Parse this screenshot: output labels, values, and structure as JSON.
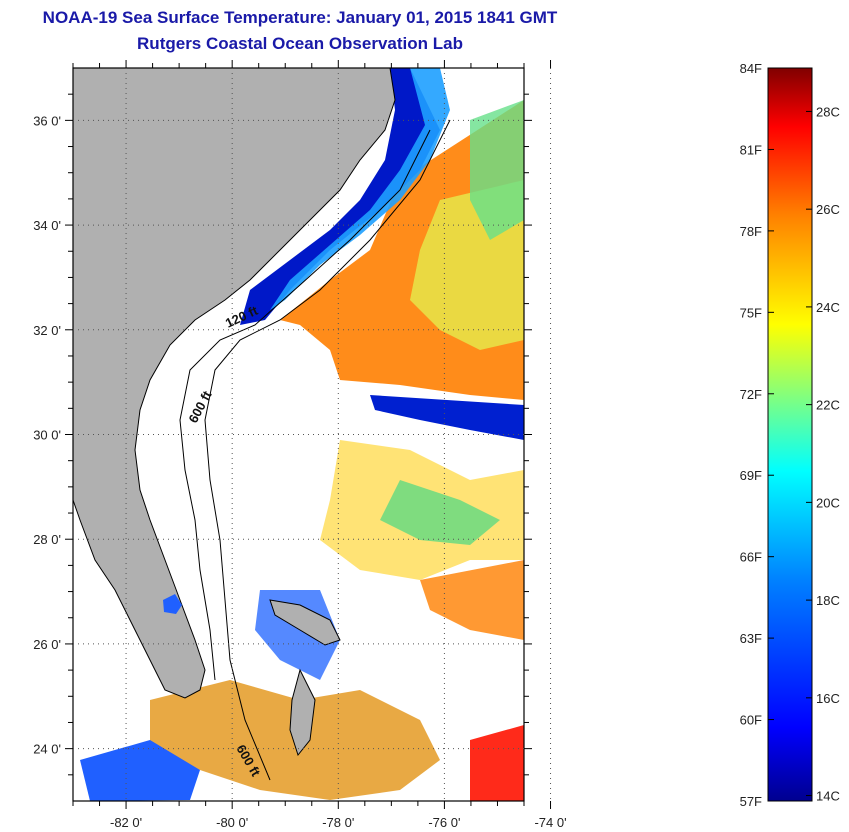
{
  "title": "NOAA-19 Sea Surface Temperature:  January 01, 2015 1841 GMT",
  "subtitle": "Rutgers Coastal Ocean Observation Lab",
  "map": {
    "lat_labels": [
      "36 0'",
      "34 0'",
      "32 0'",
      "30 0'",
      "28 0'",
      "26 0'",
      "24 0'"
    ],
    "lat_values": [
      36,
      34,
      32,
      30,
      28,
      26,
      24
    ],
    "lon_labels": [
      "-82 0'",
      "-80 0'",
      "-78 0'",
      "-76 0'",
      "-74 0'"
    ],
    "lon_values": [
      -82,
      -80,
      -78,
      -76,
      -74
    ],
    "lon_range": [
      -83,
      -74.5
    ],
    "lat_range": [
      23,
      37
    ],
    "contour_labels": [
      "120 ft",
      "600 ft",
      "600 ft"
    ],
    "land_color": "#b0b0b0",
    "cloud_color": "#ffffff"
  },
  "colorbar": {
    "fahrenheit_labels": [
      "84F",
      "81F",
      "78F",
      "75F",
      "72F",
      "69F",
      "66F",
      "63F",
      "60F",
      "57F"
    ],
    "celsius_labels": [
      "28C",
      "26C",
      "24C",
      "22C",
      "20C",
      "18C",
      "16C",
      "14C"
    ],
    "f_min": 57,
    "f_max": 84,
    "colors": [
      "#00008f",
      "#0000ff",
      "#0080ff",
      "#00ffff",
      "#80ff80",
      "#ffff00",
      "#ff8000",
      "#ff0000",
      "#800000"
    ]
  }
}
